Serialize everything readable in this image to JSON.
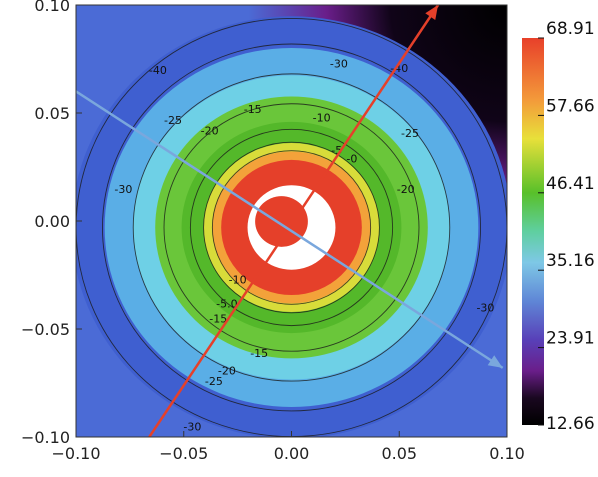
{
  "chart_data": {
    "type": "heatmap",
    "title": "",
    "xlabel": "",
    "ylabel": "",
    "xlim": [
      -0.1,
      0.1
    ],
    "ylim": [
      -0.1,
      0.1
    ],
    "x_ticks": [
      {
        "value": -0.1,
        "label": "−0.10"
      },
      {
        "value": -0.05,
        "label": "−0.05"
      },
      {
        "value": 0.0,
        "label": "0.00"
      },
      {
        "value": 0.05,
        "label": "0.05"
      },
      {
        "value": 0.1,
        "label": "0.10"
      }
    ],
    "y_ticks": [
      {
        "value": 0.1,
        "label": "0.10"
      },
      {
        "value": 0.05,
        "label": "0.05"
      },
      {
        "value": 0.0,
        "label": "0.00"
      },
      {
        "value": -0.05,
        "label": "−0.05"
      },
      {
        "value": -0.1,
        "label": "−0.10"
      }
    ],
    "colorbar": {
      "min": 12.66,
      "max": 68.91,
      "labels": [
        "68.91",
        "57.66",
        "46.41",
        "35.16",
        "23.91",
        "12.66"
      ],
      "colors": [
        "#ffffff",
        "#e8402a",
        "#f39a3a",
        "#e8e03a",
        "#66c42a",
        "#5fcfa0",
        "#7ec8e6",
        "#5f86d6",
        "#5840b8",
        "#6a1e8a",
        "#000000"
      ]
    },
    "rings": [
      {
        "r": 0.1,
        "color": "#3f5fd0"
      },
      {
        "r": 0.085,
        "color": "#5aaee6"
      },
      {
        "r": 0.072,
        "color": "#6ed0e6"
      },
      {
        "r": 0.062,
        "color": "#6ac63a"
      },
      {
        "r": 0.05,
        "color": "#54b82a"
      },
      {
        "r": 0.04,
        "color": "#d8dc3a"
      },
      {
        "r": 0.036,
        "color": "#f3a23a"
      },
      {
        "r": 0.032,
        "color": "#e5402a"
      },
      {
        "r": 0.02,
        "color": "#ffffff"
      },
      {
        "r": 0.012,
        "color": "#e5402a"
      }
    ],
    "contour_labels": [
      {
        "text": "-40",
        "x": -0.062,
        "y": 0.068
      },
      {
        "text": "-30",
        "x": 0.022,
        "y": 0.071
      },
      {
        "text": "-40",
        "x": 0.05,
        "y": 0.069
      },
      {
        "text": "-25",
        "x": -0.055,
        "y": 0.045
      },
      {
        "text": "-20",
        "x": -0.038,
        "y": 0.04
      },
      {
        "text": "-15",
        "x": -0.018,
        "y": 0.05
      },
      {
        "text": "-10",
        "x": 0.014,
        "y": 0.046
      },
      {
        "text": "-5",
        "x": 0.021,
        "y": 0.031
      },
      {
        "text": "-0",
        "x": 0.028,
        "y": 0.027
      },
      {
        "text": "-25",
        "x": 0.055,
        "y": 0.039
      },
      {
        "text": "-20",
        "x": 0.053,
        "y": 0.013
      },
      {
        "text": "-30",
        "x": -0.078,
        "y": 0.013
      },
      {
        "text": "-30",
        "x": 0.09,
        "y": -0.042
      },
      {
        "text": "-15",
        "x": -0.034,
        "y": -0.047
      },
      {
        "text": "-10",
        "x": -0.025,
        "y": -0.029
      },
      {
        "text": "-5.0",
        "x": -0.03,
        "y": -0.04
      },
      {
        "text": "-15",
        "x": -0.015,
        "y": -0.063
      },
      {
        "text": "-20",
        "x": -0.03,
        "y": -0.071
      },
      {
        "text": "-25",
        "x": -0.036,
        "y": -0.076
      },
      {
        "text": "-30",
        "x": -0.046,
        "y": -0.097
      }
    ],
    "arrows": [
      {
        "name": "red-arrow",
        "color": "#e5402a",
        "x1": -0.066,
        "y1": -0.1,
        "x2": 0.068,
        "y2": 0.1
      },
      {
        "name": "blue-arrow",
        "color": "#7aa7dd",
        "x1": -0.1,
        "y1": 0.06,
        "x2": 0.098,
        "y2": -0.068
      }
    ],
    "grid": false
  }
}
